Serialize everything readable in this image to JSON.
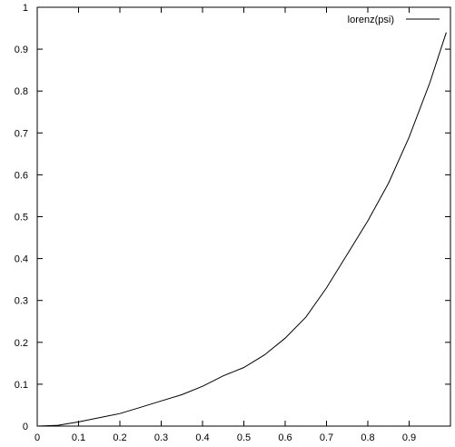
{
  "chart_data": {
    "type": "line",
    "title": "",
    "xlabel": "",
    "ylabel": "",
    "xlim": [
      0,
      1
    ],
    "ylim": [
      0,
      1
    ],
    "x_ticks": [
      "0",
      "0.1",
      "0.2",
      "0.3",
      "0.4",
      "0.5",
      "0.6",
      "0.7",
      "0.8",
      "0.9"
    ],
    "y_ticks": [
      "0",
      "0.1",
      "0.2",
      "0.3",
      "0.4",
      "0.5",
      "0.6",
      "0.7",
      "0.8",
      "0.9",
      "1"
    ],
    "grid": false,
    "legend_position": "top-right",
    "series": [
      {
        "name": "lorenz(psi)",
        "color": "#000000",
        "x": [
          0,
          0.05,
          0.1,
          0.15,
          0.2,
          0.25,
          0.3,
          0.35,
          0.4,
          0.45,
          0.5,
          0.55,
          0.6,
          0.65,
          0.7,
          0.75,
          0.8,
          0.85,
          0.9,
          0.95,
          0.99
        ],
        "y": [
          0,
          0.002,
          0.01,
          0.02,
          0.03,
          0.045,
          0.06,
          0.075,
          0.095,
          0.12,
          0.14,
          0.17,
          0.21,
          0.26,
          0.33,
          0.41,
          0.49,
          0.58,
          0.69,
          0.82,
          0.94
        ]
      }
    ]
  }
}
